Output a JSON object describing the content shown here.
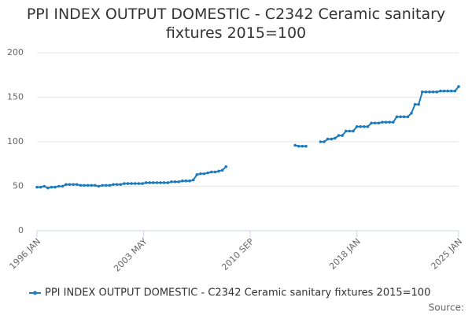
{
  "chart_data": {
    "type": "line",
    "title": "PPI INDEX OUTPUT DOMESTIC - C2342 Ceramic sanitary fixtures 2015=100",
    "source": "Source:",
    "x": [
      "1996 JAN",
      "1996 APR",
      "1996 JUL",
      "1996 OCT",
      "1997 JAN",
      "1997 APR",
      "1997 JUL",
      "1997 OCT",
      "1998 JAN",
      "1998 APR",
      "1998 JUL",
      "1998 OCT",
      "1999 JAN",
      "1999 APR",
      "1999 JUL",
      "1999 OCT",
      "2000 JAN",
      "2000 APR",
      "2000 JUL",
      "2000 OCT",
      "2001 JAN",
      "2001 APR",
      "2001 JUL",
      "2001 OCT",
      "2002 JAN",
      "2002 APR",
      "2002 JUL",
      "2002 OCT",
      "2003 JAN",
      "2003 APR",
      "2003 JUL",
      "2003 OCT",
      "2004 JAN",
      "2004 APR",
      "2004 JUL",
      "2004 OCT",
      "2005 JAN",
      "2005 APR",
      "2005 JUL",
      "2005 OCT",
      "2006 JAN",
      "2006 APR",
      "2006 JUL",
      "2006 OCT",
      "2007 JAN",
      "2007 APR",
      "2007 JUL",
      "2007 OCT",
      "2008 JAN",
      "2008 APR",
      "2008 JUL",
      "2008 OCT",
      "2009 JAN",
      "2009 APR",
      "2009 JUL",
      "2009 OCT",
      "2010 JAN",
      "2010 APR",
      "2010 JUL",
      "2010 OCT",
      "2011 JAN",
      "2011 APR",
      "2011 JUL",
      "2011 OCT",
      "2012 JAN",
      "2012 APR",
      "2012 JUL",
      "2012 OCT",
      "2013 JAN",
      "2013 APR",
      "2013 JUL",
      "2013 OCT",
      "2014 JAN",
      "2014 APR",
      "2014 JUL",
      "2014 OCT",
      "2015 JAN",
      "2015 APR",
      "2015 JUL",
      "2015 OCT",
      "2016 JAN",
      "2016 APR",
      "2016 JUL",
      "2016 OCT",
      "2017 JAN",
      "2017 APR",
      "2017 JUL",
      "2017 OCT",
      "2018 JAN",
      "2018 APR",
      "2018 JUL",
      "2018 OCT",
      "2019 JAN",
      "2019 APR",
      "2019 JUL",
      "2019 OCT",
      "2020 JAN",
      "2020 APR",
      "2020 JUL",
      "2020 OCT",
      "2021 JAN",
      "2021 APR",
      "2021 JUL",
      "2021 OCT",
      "2022 JAN",
      "2022 APR",
      "2022 JUL",
      "2022 OCT",
      "2023 JAN",
      "2023 APR",
      "2023 JUL",
      "2023 OCT",
      "2024 JAN",
      "2024 APR",
      "2024 JUL",
      "2024 OCT",
      "2025 JAN"
    ],
    "series": [
      {
        "name": "PPI INDEX OUTPUT DOMESTIC - C2342 Ceramic sanitary fixtures 2015=100",
        "color": "#1a7bbf",
        "values": [
          49,
          49,
          50,
          48,
          49,
          49,
          50,
          50,
          52,
          52,
          52,
          52,
          51,
          51,
          51,
          51,
          51,
          50,
          51,
          51,
          51,
          52,
          52,
          52,
          53,
          53,
          53,
          53,
          53,
          53,
          54,
          54,
          54,
          54,
          54,
          54,
          54,
          55,
          55,
          55,
          56,
          56,
          56,
          57,
          63,
          64,
          64,
          65,
          66,
          66,
          67,
          68,
          72,
          null,
          null,
          null,
          null,
          null,
          null,
          null,
          null,
          null,
          null,
          null,
          null,
          null,
          null,
          null,
          null,
          null,
          null,
          96,
          95,
          95,
          95,
          null,
          null,
          null,
          100,
          100,
          103,
          103,
          104,
          107,
          107,
          112,
          112,
          112,
          117,
          117,
          117,
          117,
          121,
          121,
          121,
          122,
          122,
          122,
          122,
          128,
          128,
          128,
          128,
          132,
          142,
          142,
          156,
          156,
          156,
          156,
          156,
          157,
          157,
          157,
          157,
          157,
          162
        ]
      }
    ],
    "xticks": [
      "1996 JAN",
      "2003 MAY",
      "2010 SEP",
      "2018 JAN",
      "2025 JAN"
    ],
    "ylim": [
      0,
      200
    ],
    "yticks": [
      0,
      50,
      100,
      150,
      200
    ],
    "grid": true
  }
}
